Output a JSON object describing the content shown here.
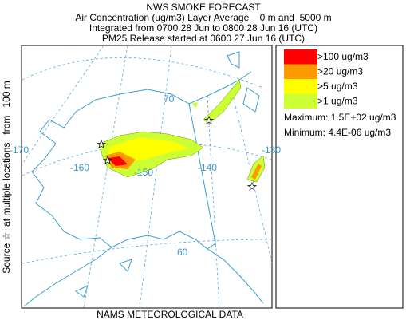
{
  "title": "NWS SMOKE FORECAST",
  "subtitle_lines": [
    "Air Concentration (ug/m3) Layer Average    0 m and  5000 m",
    "Integrated from 0700 28 Jun to 0800 28 Jun 16 (UTC)",
    "PM25 Release started at 0600 27 Jun 16 (UTC)"
  ],
  "source_label": "Source ☆  at multiple locations   from   100 m",
  "footer": "NAMS METEOROLOGICAL DATA",
  "legend": {
    "items": [
      {
        "label": ">100 ug/m3",
        "color": "#ff0000"
      },
      {
        "label": ">20 ug/m3",
        "color": "#ff9900"
      },
      {
        "label": ">5 ug/m3",
        "color": "#ffff00"
      },
      {
        "label": ">1 ug/m3",
        "color": "#ccff33"
      }
    ],
    "maximum": "Maximum: 1.5E+02 ug/m3",
    "minimum": "Minimum: 4.4E-06 ug/m3"
  },
  "map_labels": [
    "-170",
    "-160",
    "-150",
    "-140",
    "-130",
    "70",
    "60"
  ]
}
